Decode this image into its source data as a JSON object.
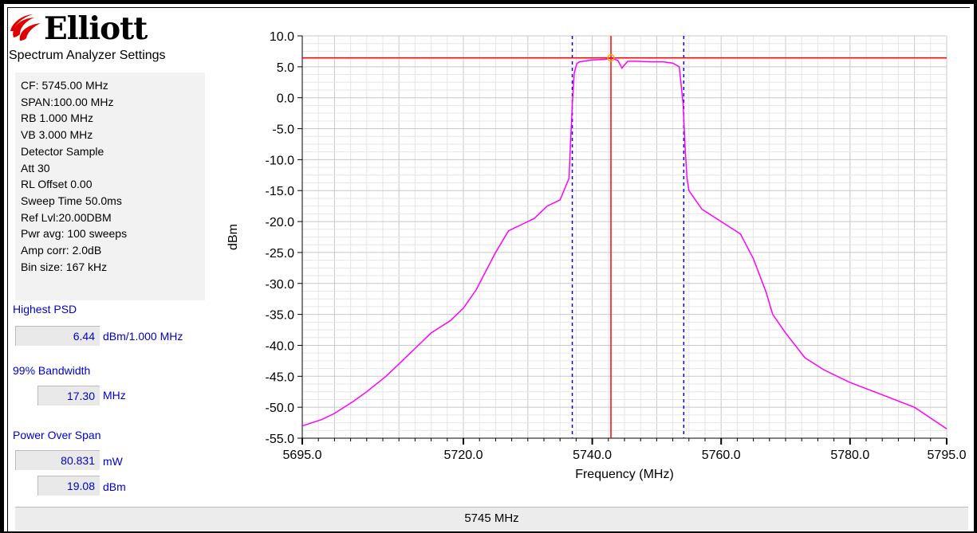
{
  "logo": {
    "brand": "Elliott"
  },
  "settings": {
    "title": "Spectrum Analyzer Settings",
    "lines": [
      "CF: 5745.00 MHz",
      "SPAN:100.00 MHz",
      "RB 1.000 MHz",
      "VB 3.000 MHz",
      "Detector Sample",
      "Att 30",
      "RL Offset 0.00",
      "Sweep Time 50.0ms",
      "Ref Lvl:20.00DBM",
      "Pwr avg: 100 sweeps",
      "Amp corr: 2.0dB",
      "Bin size: 167 kHz"
    ]
  },
  "highest_psd": {
    "label": "Highest PSD",
    "value": "6.44",
    "unit": "dBm/1.000 MHz"
  },
  "bandwidth_99": {
    "label": "99% Bandwidth",
    "value": "17.30",
    "unit": "MHz"
  },
  "power_over_span": {
    "label": "Power Over Span",
    "mw_value": "80.831",
    "mw_unit": "mW",
    "dbm_value": "19.08",
    "dbm_unit": "dBm"
  },
  "status_bar": {
    "text": "5745 MHz"
  },
  "colors": {
    "trace": "#ff00ff",
    "marker": "#ff0000",
    "bandwidth_lines": "#0000ff",
    "grid": "#d8d8d8"
  },
  "chart_data": {
    "type": "line",
    "title": "",
    "xlabel": "Frequency (MHz)",
    "ylabel": "dBm",
    "xlim": [
      5695.0,
      5795.0
    ],
    "ylim": [
      -55.0,
      10.0
    ],
    "x_major_ticks": [
      5695.0,
      5720.0,
      5740.0,
      5760.0,
      5780.0,
      5795.0
    ],
    "x_major_tick_labels": [
      "5695.0",
      "5720.0",
      "5740.0",
      "5760.0",
      "5780.0",
      "5795.0"
    ],
    "y_ticks": [
      10.0,
      5.0,
      0.0,
      -5.0,
      -10.0,
      -15.0,
      -20.0,
      -25.0,
      -30.0,
      -35.0,
      -40.0,
      -45.0,
      -50.0,
      -55.0
    ],
    "y_tick_labels": [
      "10.0",
      "5.0",
      "0.0",
      "-5.0",
      "-10.0",
      "-15.0",
      "-20.0",
      "-25.0",
      "-30.0",
      "-35.0",
      "-40.0",
      "-45.0",
      "-50.0",
      "-55.0"
    ],
    "grid": true,
    "series": [
      {
        "x": [
          5695.0,
          5698.0,
          5700.0,
          5703.0,
          5705.0,
          5708.0,
          5710.0,
          5713.0,
          5715.0,
          5718.0,
          5720.0,
          5722.0,
          5723.0,
          5725.0,
          5727.0,
          5729.0,
          5731.0,
          5733.0,
          5735.0,
          5736.4,
          5736.6,
          5736.9,
          5737.2,
          5737.6,
          5738.0,
          5740.0,
          5742.0,
          5742.9,
          5744.0,
          5744.6,
          5745.5,
          5747.0,
          5749.0,
          5751.0,
          5752.5,
          5753.5,
          5754.1,
          5754.4,
          5754.7,
          5755.0,
          5757.0,
          5760.0,
          5763.0,
          5765.0,
          5767.0,
          5768.0,
          5770.0,
          5773.0,
          5776.0,
          5780.0,
          5785.0,
          5790.0,
          5795.0
        ],
        "y": [
          -53.0,
          -52.0,
          -51.0,
          -49.0,
          -47.5,
          -45.0,
          -43.0,
          -40.0,
          -38.0,
          -36.0,
          -34.0,
          -31.0,
          -29.0,
          -25.0,
          -21.5,
          -20.5,
          -19.5,
          -17.5,
          -16.5,
          -13.0,
          -8.0,
          -1.0,
          4.0,
          5.5,
          5.8,
          6.1,
          6.2,
          6.44,
          6.0,
          4.8,
          5.9,
          5.9,
          5.8,
          5.8,
          5.6,
          5.0,
          -1.0,
          -8.0,
          -13.0,
          -15.0,
          -18.0,
          -20.0,
          -22.0,
          -26.0,
          -31.5,
          -35.0,
          -38.0,
          -42.0,
          -44.0,
          -46.0,
          -48.0,
          -50.0,
          -53.5
        ]
      }
    ],
    "marker": {
      "x": 5742.9,
      "y": 6.44
    },
    "bandwidth_limits": [
      5736.9,
      5754.2
    ]
  }
}
